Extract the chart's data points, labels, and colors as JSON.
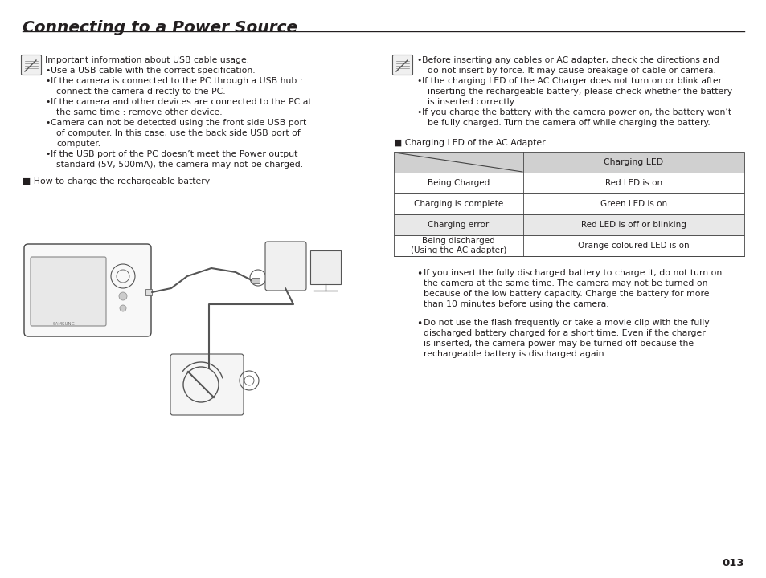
{
  "title": "Connecting to a Power Source",
  "bg_color": "#ffffff",
  "text_color": "#231f20",
  "page_number": "013",
  "icon_note_text": "Important information about USB cable usage.",
  "left_bullets": [
    "Use a USB cable with the correct specification.",
    "If the camera is connected to the PC through a USB hub :\n   connect the camera directly to the PC.",
    "If the camera and other devices are connected to the PC at\n   the same time : remove other device.",
    "Camera can not be detected using the front side USB port\n   of computer. In this case, use the back side USB port of\n   computer.",
    "If the USB port of the PC doesn’t meet the Power output\n   standard (5V, 500mA), the camera may not be charged."
  ],
  "right_intro_bullet": "Before inserting any cables or AC adapter, check the directions and\ndo not insert by force. It may cause breakage of cable or camera.",
  "right_bullets": [
    "If the charging LED of the AC Charger does not turn on or blink after\n   inserting the rechargeable battery, please check whether the battery\n   is inserted correctly.",
    "If you charge the battery with the camera power on, the battery won’t\n   be fully charged. Turn the camera off while charging the battery."
  ],
  "how_to_charge": "■ How to charge the rechargeable battery",
  "charging_led_title": "■ Charging LED of the AC Adapter",
  "table_header_col2": "Charging LED",
  "table_rows": [
    [
      "Being Charged",
      "Red LED is on",
      "white"
    ],
    [
      "Charging is complete",
      "Green LED is on",
      "white"
    ],
    [
      "Charging error",
      "Red LED is off or blinking",
      "gray"
    ],
    [
      "Being discharged\n(Using the AC adapter)",
      "Orange coloured LED is on",
      "white"
    ]
  ],
  "table_header_bg": "#d0d0d0",
  "table_gray_bg": "#e8e8e8",
  "table_white_bg": "#ffffff",
  "bottom_bullets": [
    "If you insert the fully discharged battery to charge it, do not turn on\nthe camera at the same time. The camera may not be turned on\nbecause of the low battery capacity. Charge the battery for more\nthan 10 minutes before using the camera.",
    "Do not use the flash frequently or take a movie clip with the fully\ndischarged battery charged for a short time. Even if the charger\nis inserted, the camera power may be turned off because the\nrechargeable battery is discharged again."
  ]
}
